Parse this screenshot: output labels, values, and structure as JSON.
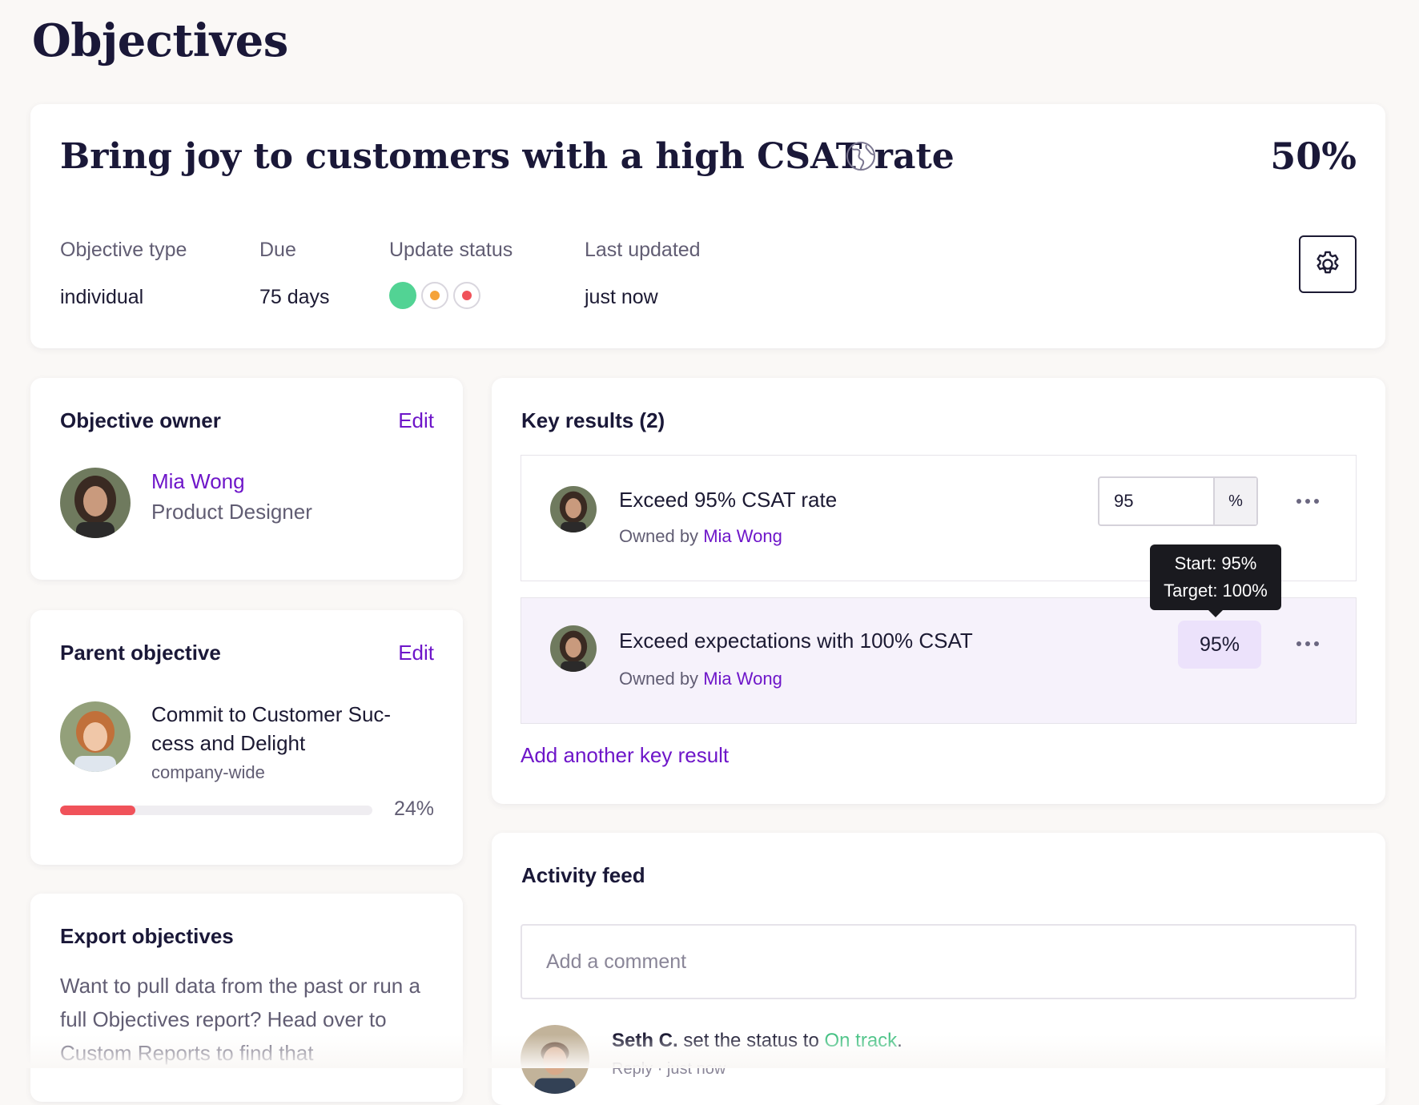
{
  "page": {
    "title": "Objectives"
  },
  "objective": {
    "title": "Bring joy to customers with a high CSAT rate",
    "percent": "50%",
    "meta": [
      {
        "label": "Objective type",
        "value": "individual"
      },
      {
        "label": "Due",
        "value": "75 days"
      },
      {
        "label": "Update status",
        "value": ""
      },
      {
        "label": "Last updated",
        "value": "just now"
      }
    ],
    "status_colors": {
      "on_track": "#52d394",
      "at_risk": "#f5a33a",
      "off_track": "#f0525a"
    }
  },
  "owner_card": {
    "heading": "Objective owner",
    "edit_label": "Edit",
    "name": "Mia Wong",
    "role": "Product Designer"
  },
  "parent_card": {
    "heading": "Parent objective",
    "edit_label": "Edit",
    "title": "Commit to Customer Suc-cess and Delight",
    "scope": "company-wide",
    "progress_percent": 24,
    "progress_label": "24%"
  },
  "export_card": {
    "heading": "Export objectives",
    "text": "Want to pull data from the past or run a full Objectives report? Head over to Custom Reports to find that"
  },
  "key_results": {
    "heading": "Key results (2)",
    "items": [
      {
        "title": "Exceed 95% CSAT rate",
        "owned_by_label": "Owned by",
        "owner": "Mia Wong",
        "input_value": "95",
        "unit": "%"
      },
      {
        "title": "Exceed expectations with 100% CSAT",
        "owned_by_label": "Owned by",
        "owner": "Mia Wong",
        "value": "95%"
      }
    ],
    "tooltip": {
      "start": "Start: 95%",
      "target": "Target: 100%"
    },
    "add_label": "Add another key result"
  },
  "activity": {
    "heading": "Activity feed",
    "comment_placeholder": "Add a comment",
    "entry": {
      "actor": "Seth C.",
      "action": "set the status to",
      "status": "On track",
      "end": ".",
      "meta": "Reply · just now"
    }
  }
}
